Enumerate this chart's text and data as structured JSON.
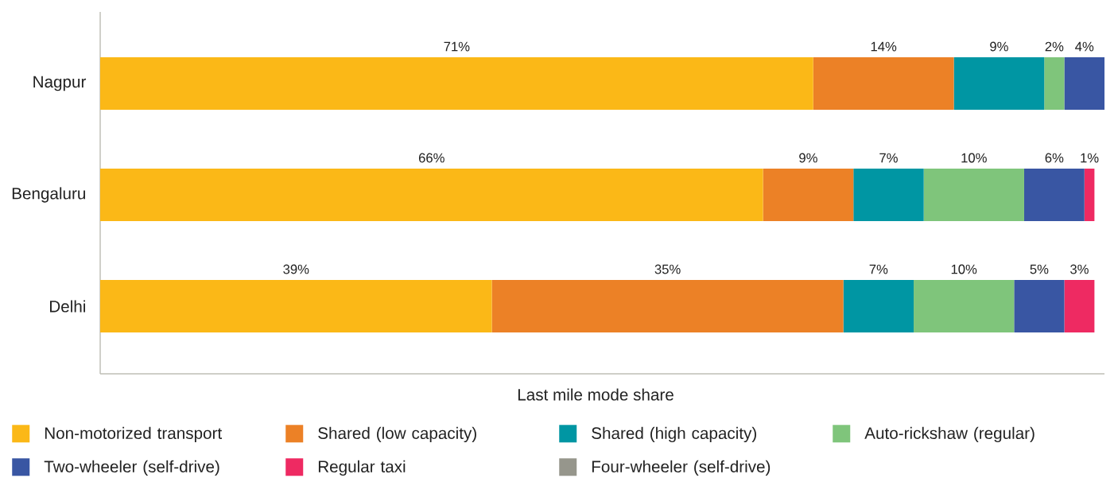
{
  "chart_data": {
    "type": "bar",
    "orientation": "horizontal",
    "stacked": true,
    "xlabel": "Last mile mode share",
    "categories": [
      "Nagpur",
      "Bengaluru",
      "Delhi"
    ],
    "xlim": [
      0,
      100
    ],
    "tick_labels": "y",
    "legend": "bottom",
    "series": [
      {
        "name": "Non-motorized transport",
        "color": "#FBB817",
        "values": [
          71,
          66,
          39
        ],
        "value_labels": [
          "71%",
          "66%",
          "39%"
        ]
      },
      {
        "name": "Shared (low capacity)",
        "color": "#EC8126",
        "values": [
          14,
          9,
          35
        ],
        "value_labels": [
          "14%",
          "9%",
          "35%"
        ]
      },
      {
        "name": "Shared (high capacity)",
        "color": "#0096A3",
        "values": [
          9,
          7,
          7
        ],
        "value_labels": [
          "9%",
          "7%",
          "7%"
        ]
      },
      {
        "name": "Auto-rickshaw (regular)",
        "color": "#7FC57B",
        "values": [
          2,
          10,
          10
        ],
        "value_labels": [
          "2%",
          "10%",
          "10%"
        ]
      },
      {
        "name": "Two-wheeler (self-drive)",
        "color": "#3956A3",
        "values": [
          4,
          6,
          5
        ],
        "value_labels": [
          "4%",
          "6%",
          "5%"
        ]
      },
      {
        "name": "Regular taxi",
        "color": "#EE2A62",
        "values": [
          null,
          1,
          3
        ],
        "value_labels": [
          null,
          "1%",
          "3%"
        ]
      },
      {
        "name": "Four-wheeler (self-drive)",
        "color": "#96968C",
        "values": [
          null,
          null,
          null
        ]
      }
    ]
  }
}
